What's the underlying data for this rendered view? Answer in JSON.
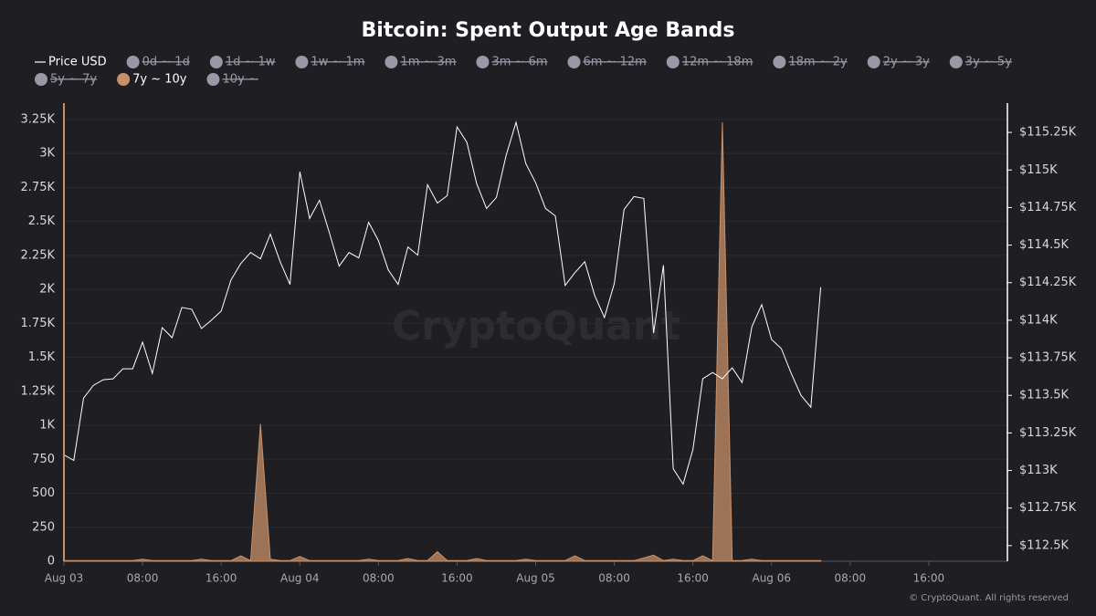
{
  "chart_data": {
    "type": "line",
    "title": "Bitcoin: Spent Output Age Bands",
    "watermark": "CryptoQuant",
    "footer": "© CryptoQuant. All rights reserved",
    "x": [
      0,
      1,
      2,
      3,
      4,
      5,
      6,
      7,
      8,
      9,
      10,
      11,
      12,
      13,
      14,
      15,
      16,
      17,
      18,
      19,
      20,
      21,
      22,
      23,
      24,
      25,
      26,
      27,
      28,
      29,
      30,
      31,
      32,
      33,
      34,
      35,
      36,
      37,
      38,
      39,
      40,
      41,
      42,
      43,
      44,
      45,
      46,
      47,
      48,
      49,
      50,
      51,
      52,
      53,
      54,
      55,
      56,
      57,
      58,
      59,
      60,
      61,
      62,
      63,
      64,
      65,
      66,
      67,
      68,
      69,
      70,
      71,
      72,
      73,
      74,
      75,
      76,
      77
    ],
    "xlim": [
      0,
      96
    ],
    "xticks": [
      {
        "value": 0,
        "label": "Aug 03"
      },
      {
        "value": 8,
        "label": "08:00"
      },
      {
        "value": 16,
        "label": "16:00"
      },
      {
        "value": 24,
        "label": "Aug 04"
      },
      {
        "value": 32,
        "label": "08:00"
      },
      {
        "value": 40,
        "label": "16:00"
      },
      {
        "value": 48,
        "label": "Aug 05"
      },
      {
        "value": 56,
        "label": "08:00"
      },
      {
        "value": 64,
        "label": "16:00"
      },
      {
        "value": 72,
        "label": "Aug 06"
      },
      {
        "value": 80,
        "label": "08:00"
      },
      {
        "value": 88,
        "label": "16:00"
      }
    ],
    "ylim": [
      0,
      3370
    ],
    "yticks": [
      0,
      250,
      500,
      750,
      {
        "value": 1000,
        "label": "1K"
      },
      {
        "value": 1250,
        "label": "1.25K"
      },
      {
        "value": 1500,
        "label": "1.5K"
      },
      {
        "value": 1750,
        "label": "1.75K"
      },
      {
        "value": 2000,
        "label": "2K"
      },
      {
        "value": 2250,
        "label": "2.25K"
      },
      {
        "value": 2500,
        "label": "2.5K"
      },
      {
        "value": 2750,
        "label": "2.75K"
      },
      {
        "value": 3000,
        "label": "3K"
      },
      {
        "value": 3250,
        "label": "3.25K"
      }
    ],
    "y2lim": [
      112396,
      115445
    ],
    "y2ticks": [
      {
        "value": 112500,
        "label": "$112.5K"
      },
      {
        "value": 112750,
        "label": "$112.75K"
      },
      {
        "value": 113000,
        "label": "$113K"
      },
      {
        "value": 113250,
        "label": "$113.25K"
      },
      {
        "value": 113500,
        "label": "$113.5K"
      },
      {
        "value": 113750,
        "label": "$113.75K"
      },
      {
        "value": 114000,
        "label": "$114K"
      },
      {
        "value": 114250,
        "label": "$114.25K"
      },
      {
        "value": 114500,
        "label": "$114.5K"
      },
      {
        "value": 114750,
        "label": "$114.75K"
      },
      {
        "value": 115000,
        "label": "$115K"
      },
      {
        "value": 115250,
        "label": "$115.25K"
      }
    ],
    "grid": true,
    "series": [
      {
        "name": "Price USD",
        "color": "#ffffff",
        "axis": "y2",
        "values": [
          113104,
          113067,
          113482,
          113567,
          113604,
          113610,
          113677,
          113677,
          113854,
          113646,
          113951,
          113884,
          114085,
          114073,
          113945,
          114000,
          114061,
          114268,
          114378,
          114451,
          114409,
          114573,
          114390,
          114238,
          114988,
          114677,
          114799,
          114585,
          114360,
          114451,
          114415,
          114652,
          114530,
          114335,
          114238,
          114488,
          114433,
          114902,
          114780,
          114829,
          115287,
          115183,
          114909,
          114744,
          114817,
          115098,
          115317,
          115043,
          114915,
          114744,
          114695,
          114232,
          114317,
          114390,
          114165,
          114018,
          114244,
          114738,
          114823,
          114811,
          113915,
          114366,
          113012,
          112909,
          113140,
          113610,
          113652,
          113610,
          113683,
          113585,
          113957,
          114104,
          113872,
          113811,
          113646,
          113500,
          113421,
          114220
        ]
      },
      {
        "name": "0d ~ 1d",
        "color": "#9a98a6",
        "hidden": true
      },
      {
        "name": "1d ~ 1w",
        "color": "#9a98a6",
        "hidden": true
      },
      {
        "name": "1w ~ 1m",
        "color": "#9a98a6",
        "hidden": true
      },
      {
        "name": "1m ~ 3m",
        "color": "#9a98a6",
        "hidden": true
      },
      {
        "name": "3m ~ 6m",
        "color": "#9a98a6",
        "hidden": true
      },
      {
        "name": "6m ~ 12m",
        "color": "#9a98a6",
        "hidden": true
      },
      {
        "name": "12m ~ 18m",
        "color": "#9a98a6",
        "hidden": true
      },
      {
        "name": "18m ~ 2y",
        "color": "#9a98a6",
        "hidden": true
      },
      {
        "name": "2y ~ 3y",
        "color": "#9a98a6",
        "hidden": true
      },
      {
        "name": "3y ~ 5y",
        "color": "#9a98a6",
        "hidden": true
      },
      {
        "name": "5y ~ 7y",
        "color": "#9a98a6",
        "hidden": true
      },
      {
        "name": "7y ~ 10y",
        "color": "#c8906a",
        "type": "area",
        "values": [
          5,
          5,
          5,
          5,
          5,
          5,
          5,
          5,
          15,
          5,
          5,
          5,
          5,
          5,
          15,
          5,
          5,
          5,
          40,
          5,
          1010,
          15,
          5,
          5,
          35,
          5,
          5,
          5,
          5,
          5,
          5,
          15,
          5,
          5,
          5,
          20,
          5,
          5,
          70,
          5,
          5,
          5,
          20,
          5,
          5,
          5,
          5,
          15,
          5,
          5,
          5,
          5,
          40,
          5,
          5,
          5,
          5,
          5,
          5,
          25,
          45,
          5,
          15,
          5,
          5,
          40,
          5,
          3230,
          5,
          5,
          15,
          5,
          5,
          5,
          5,
          5,
          5,
          5
        ]
      },
      {
        "name": "10y ~",
        "color": "#9a98a6",
        "hidden": true
      }
    ]
  }
}
